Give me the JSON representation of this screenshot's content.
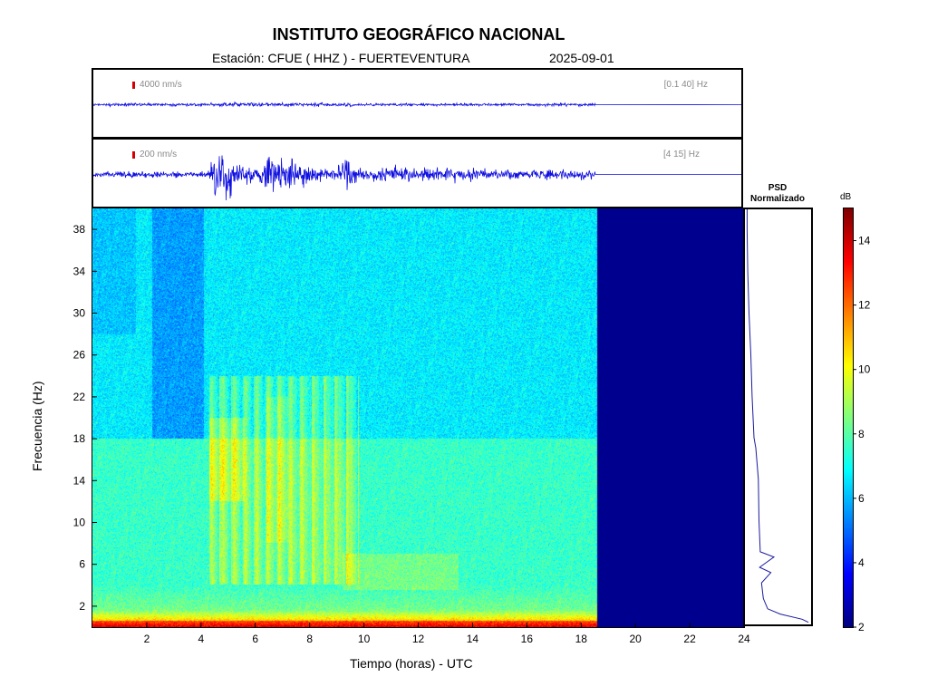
{
  "header": {
    "institution": "INSTITUTO GEOGRÁFICO NACIONAL",
    "station_label": "Estación:  CFUE ( HHZ ) - FUERTEVENTURA",
    "date": "2025-09-01"
  },
  "traces": [
    {
      "scale": "4000 nm/s",
      "band": "[0.1 40] Hz"
    },
    {
      "scale": "200 nm/s",
      "band": "[4 15] Hz"
    }
  ],
  "spectrogram": {
    "xlabel": "Tiempo (horas) - UTC",
    "ylabel": "Frecuencia  (Hz)",
    "xlim": [
      0,
      24
    ],
    "ylim": [
      0,
      40
    ],
    "xticks": [
      2,
      4,
      6,
      8,
      10,
      12,
      14,
      16,
      18,
      20,
      22,
      24
    ],
    "yticks": [
      2,
      6,
      10,
      14,
      18,
      22,
      26,
      30,
      34,
      38
    ],
    "data_end_hour": 18.6
  },
  "psd": {
    "title_line1": "PSD",
    "title_line2": "Normalizado"
  },
  "colorbar": {
    "unit": "dB",
    "ticks": [
      2,
      4,
      6,
      8,
      10,
      12,
      14
    ],
    "range": [
      2,
      15
    ]
  },
  "colors": {
    "trace": "#1010e0",
    "no_data": "#00008f",
    "psd_line": "#1a1a9e",
    "scale_bar": "#d40000"
  },
  "chart_data": {
    "type": "heatmap",
    "title": "INSTITUTO GEOGRÁFICO NACIONAL",
    "xlabel": "Tiempo (horas) - UTC",
    "ylabel": "Frecuencia  (Hz)",
    "xlim": [
      0,
      24
    ],
    "ylim": [
      0,
      40
    ],
    "colorbar_label": "dB",
    "colorbar_range": [
      2,
      15
    ],
    "data_end_hour": 18.6,
    "psd_profile": [
      {
        "f": 0.2,
        "v": 1.0
      },
      {
        "f": 0.5,
        "v": 0.9
      },
      {
        "f": 1.0,
        "v": 0.55
      },
      {
        "f": 1.5,
        "v": 0.35
      },
      {
        "f": 2.5,
        "v": 0.28
      },
      {
        "f": 4.0,
        "v": 0.25
      },
      {
        "f": 5.0,
        "v": 0.4
      },
      {
        "f": 5.5,
        "v": 0.22
      },
      {
        "f": 6.5,
        "v": 0.45
      },
      {
        "f": 7.0,
        "v": 0.23
      },
      {
        "f": 10.0,
        "v": 0.21
      },
      {
        "f": 14.0,
        "v": 0.2
      },
      {
        "f": 17.0,
        "v": 0.16
      },
      {
        "f": 18.0,
        "v": 0.13
      },
      {
        "f": 22.0,
        "v": 0.1
      },
      {
        "f": 26.0,
        "v": 0.08
      },
      {
        "f": 30.0,
        "v": 0.05
      },
      {
        "f": 34.0,
        "v": 0.03
      },
      {
        "f": 38.0,
        "v": 0.02
      },
      {
        "f": 40.0,
        "v": 0.02
      }
    ]
  }
}
